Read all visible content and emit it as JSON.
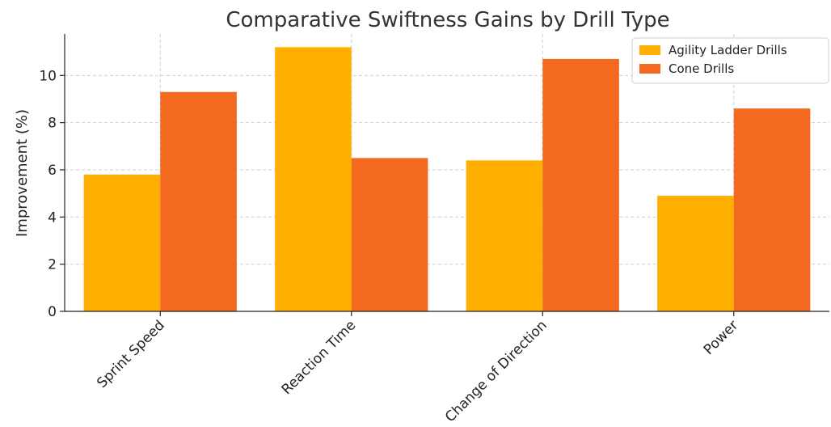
{
  "chart_data": {
    "type": "bar",
    "title": "Comparative Swiftness Gains by Drill Type",
    "xlabel": "",
    "ylabel": "Improvement (%)",
    "ylim": [
      0,
      11.76
    ],
    "yticks": [
      0,
      2,
      4,
      6,
      8,
      10
    ],
    "categories": [
      "Sprint Speed",
      "Reaction Time",
      "Change of Direction",
      "Power"
    ],
    "series": [
      {
        "name": "Agility Ladder Drills",
        "color": "#FFAF00",
        "values": [
          5.8,
          11.2,
          6.4,
          4.9
        ]
      },
      {
        "name": "Cone Drills",
        "color": "#F46920",
        "values": [
          9.3,
          6.5,
          10.7,
          8.6
        ]
      }
    ],
    "grid": true,
    "legend_position": "top-right"
  }
}
